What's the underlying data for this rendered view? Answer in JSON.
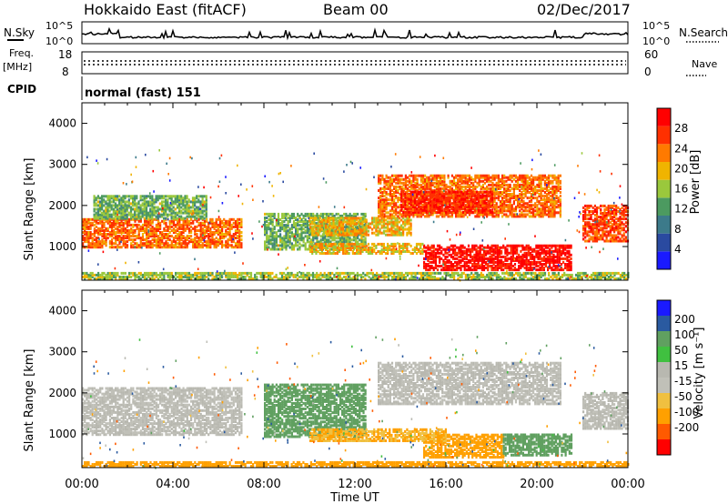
{
  "header": {
    "title": "Hokkaido East (fitACF)",
    "beam": "Beam 00",
    "date": "02/Dec/2017"
  },
  "top_panels": {
    "nsky_label": "N.Sky",
    "nsky_ticks": [
      "10^5",
      "10^0"
    ],
    "nsearch_label": "N.Search",
    "freq_label_1": "Freq.",
    "freq_label_2": "[MHz]",
    "freq_ticks": [
      "18",
      "8"
    ],
    "nave_label": "Nave",
    "nave_ticks": [
      "60",
      "0"
    ],
    "cpid_label": "CPID",
    "cpid_text": "normal (fast) 151"
  },
  "colors": {
    "power_scale": [
      "#1a1aff",
      "#2a4aa0",
      "#3c7a8a",
      "#4c9a60",
      "#9ac83c",
      "#f0b400",
      "#ff7a00",
      "#ff3000",
      "#ff0000"
    ],
    "velocity_scale": [
      "#ff0000",
      "#ff5a00",
      "#ffa000",
      "#f0c040",
      "#c0c0b8",
      "#b8b8b0",
      "#40c040",
      "#60a060",
      "#2a5aa0",
      "#1a1aff"
    ]
  },
  "chart_data": [
    {
      "type": "heatmap",
      "name": "power",
      "ylabel": "Slant Range [km]",
      "ylim": [
        180,
        4500
      ],
      "y_ticks": [
        1000,
        2000,
        3000,
        4000
      ],
      "xlim": [
        0,
        24
      ],
      "x_ticks": [
        "00:00",
        "04:00",
        "08:00",
        "12:00",
        "16:00",
        "20:00",
        "00:00"
      ],
      "colorbar_label": "Power [dB]",
      "colorbar_ticks": [
        "4",
        "8",
        "12",
        "16",
        "20",
        "24",
        "28"
      ],
      "colorbar_range": [
        0,
        32
      ],
      "regions": [
        {
          "t0": 0.0,
          "t1": 7.0,
          "r0": 950,
          "r1": 1650,
          "value": 24
        },
        {
          "t0": 0.5,
          "t1": 5.5,
          "r0": 1650,
          "r1": 2200,
          "value": 14
        },
        {
          "t0": 8.0,
          "t1": 12.5,
          "r0": 900,
          "r1": 1800,
          "value": 14
        },
        {
          "t0": 10.0,
          "t1": 14.5,
          "r0": 1250,
          "r1": 1700,
          "value": 20
        },
        {
          "t0": 13.0,
          "t1": 21.0,
          "r0": 1700,
          "r1": 2700,
          "value": 24
        },
        {
          "t0": 14.0,
          "t1": 18.0,
          "r0": 1800,
          "r1": 2300,
          "value": 28
        },
        {
          "t0": 15.0,
          "t1": 21.5,
          "r0": 400,
          "r1": 1000,
          "value": 30
        },
        {
          "t0": 22.0,
          "t1": 24.0,
          "r0": 1100,
          "r1": 2000,
          "value": 26
        },
        {
          "t0": 10.0,
          "t1": 15.0,
          "r0": 800,
          "r1": 1050,
          "value": 20
        },
        {
          "t0": 0.0,
          "t1": 24.0,
          "r0": 180,
          "r1": 320,
          "value": 16
        }
      ]
    },
    {
      "type": "heatmap",
      "name": "velocity",
      "ylabel": "Slant Range [km]",
      "ylim": [
        180,
        4500
      ],
      "y_ticks": [
        1000,
        2000,
        3000,
        4000
      ],
      "xlim": [
        0,
        24
      ],
      "x_ticks": [
        "00:00",
        "04:00",
        "08:00",
        "12:00",
        "16:00",
        "20:00",
        "00:00"
      ],
      "xlabel": "Time UT",
      "colorbar_label": "Velocity [m s⁻¹]",
      "colorbar_ticks": [
        "200",
        "100",
        "50",
        "15",
        "-15",
        "-50",
        "-100",
        "-200"
      ],
      "regions": [
        {
          "t0": 0.0,
          "t1": 7.0,
          "r0": 950,
          "r1": 2100,
          "value": 0
        },
        {
          "t0": 8.0,
          "t1": 12.5,
          "r0": 900,
          "r1": 2200,
          "value": 40
        },
        {
          "t0": 13.0,
          "t1": 21.0,
          "r0": 1700,
          "r1": 2700,
          "value": 0
        },
        {
          "t0": 15.0,
          "t1": 18.5,
          "r0": 400,
          "r1": 950,
          "value": -60
        },
        {
          "t0": 18.5,
          "t1": 21.5,
          "r0": 450,
          "r1": 950,
          "value": 40
        },
        {
          "t0": 10.0,
          "t1": 16.0,
          "r0": 800,
          "r1": 1100,
          "value": -30
        },
        {
          "t0": 22.0,
          "t1": 24.0,
          "r0": 1100,
          "r1": 2000,
          "value": 0
        },
        {
          "t0": 0.0,
          "t1": 24.0,
          "r0": 180,
          "r1": 300,
          "value": -40
        }
      ]
    }
  ]
}
